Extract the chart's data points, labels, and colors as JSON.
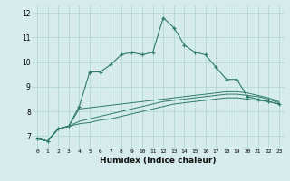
{
  "x": [
    0,
    1,
    2,
    3,
    4,
    5,
    6,
    7,
    8,
    9,
    10,
    11,
    12,
    13,
    14,
    15,
    16,
    17,
    18,
    19,
    20,
    21,
    22,
    23
  ],
  "line1": [
    6.9,
    6.8,
    7.3,
    7.4,
    8.2,
    9.6,
    9.6,
    9.9,
    10.3,
    10.4,
    10.3,
    10.4,
    11.8,
    11.4,
    10.7,
    10.4,
    10.3,
    9.8,
    9.3,
    9.3,
    8.6,
    8.5,
    8.4,
    8.3
  ],
  "line2": [
    6.9,
    6.8,
    7.3,
    7.4,
    8.1,
    8.15,
    8.2,
    8.25,
    8.3,
    8.35,
    8.4,
    8.45,
    8.5,
    8.55,
    8.6,
    8.65,
    8.7,
    8.75,
    8.8,
    8.8,
    8.75,
    8.65,
    8.55,
    8.4
  ],
  "line3": [
    6.9,
    6.8,
    7.3,
    7.4,
    7.6,
    7.7,
    7.8,
    7.9,
    8.0,
    8.1,
    8.2,
    8.3,
    8.4,
    8.45,
    8.5,
    8.55,
    8.6,
    8.65,
    8.7,
    8.7,
    8.65,
    8.6,
    8.5,
    8.35
  ],
  "line4": [
    6.9,
    6.8,
    7.3,
    7.4,
    7.5,
    7.55,
    7.65,
    7.7,
    7.8,
    7.9,
    8.0,
    8.1,
    8.2,
    8.3,
    8.35,
    8.4,
    8.45,
    8.5,
    8.55,
    8.55,
    8.5,
    8.45,
    8.4,
    8.3
  ],
  "line_color": "#2d7a6a",
  "bg_color": "#d6ecec",
  "grid_color": "#afd4d4",
  "xlabel": "Humidex (Indice chaleur)",
  "ylim": [
    6.5,
    12.3
  ],
  "xlim": [
    -0.5,
    23.5
  ],
  "yticks": [
    7,
    8,
    9,
    10,
    11,
    12
  ],
  "xticks": [
    0,
    1,
    2,
    3,
    4,
    5,
    6,
    7,
    8,
    9,
    10,
    11,
    12,
    13,
    14,
    15,
    16,
    17,
    18,
    19,
    20,
    21,
    22,
    23
  ]
}
